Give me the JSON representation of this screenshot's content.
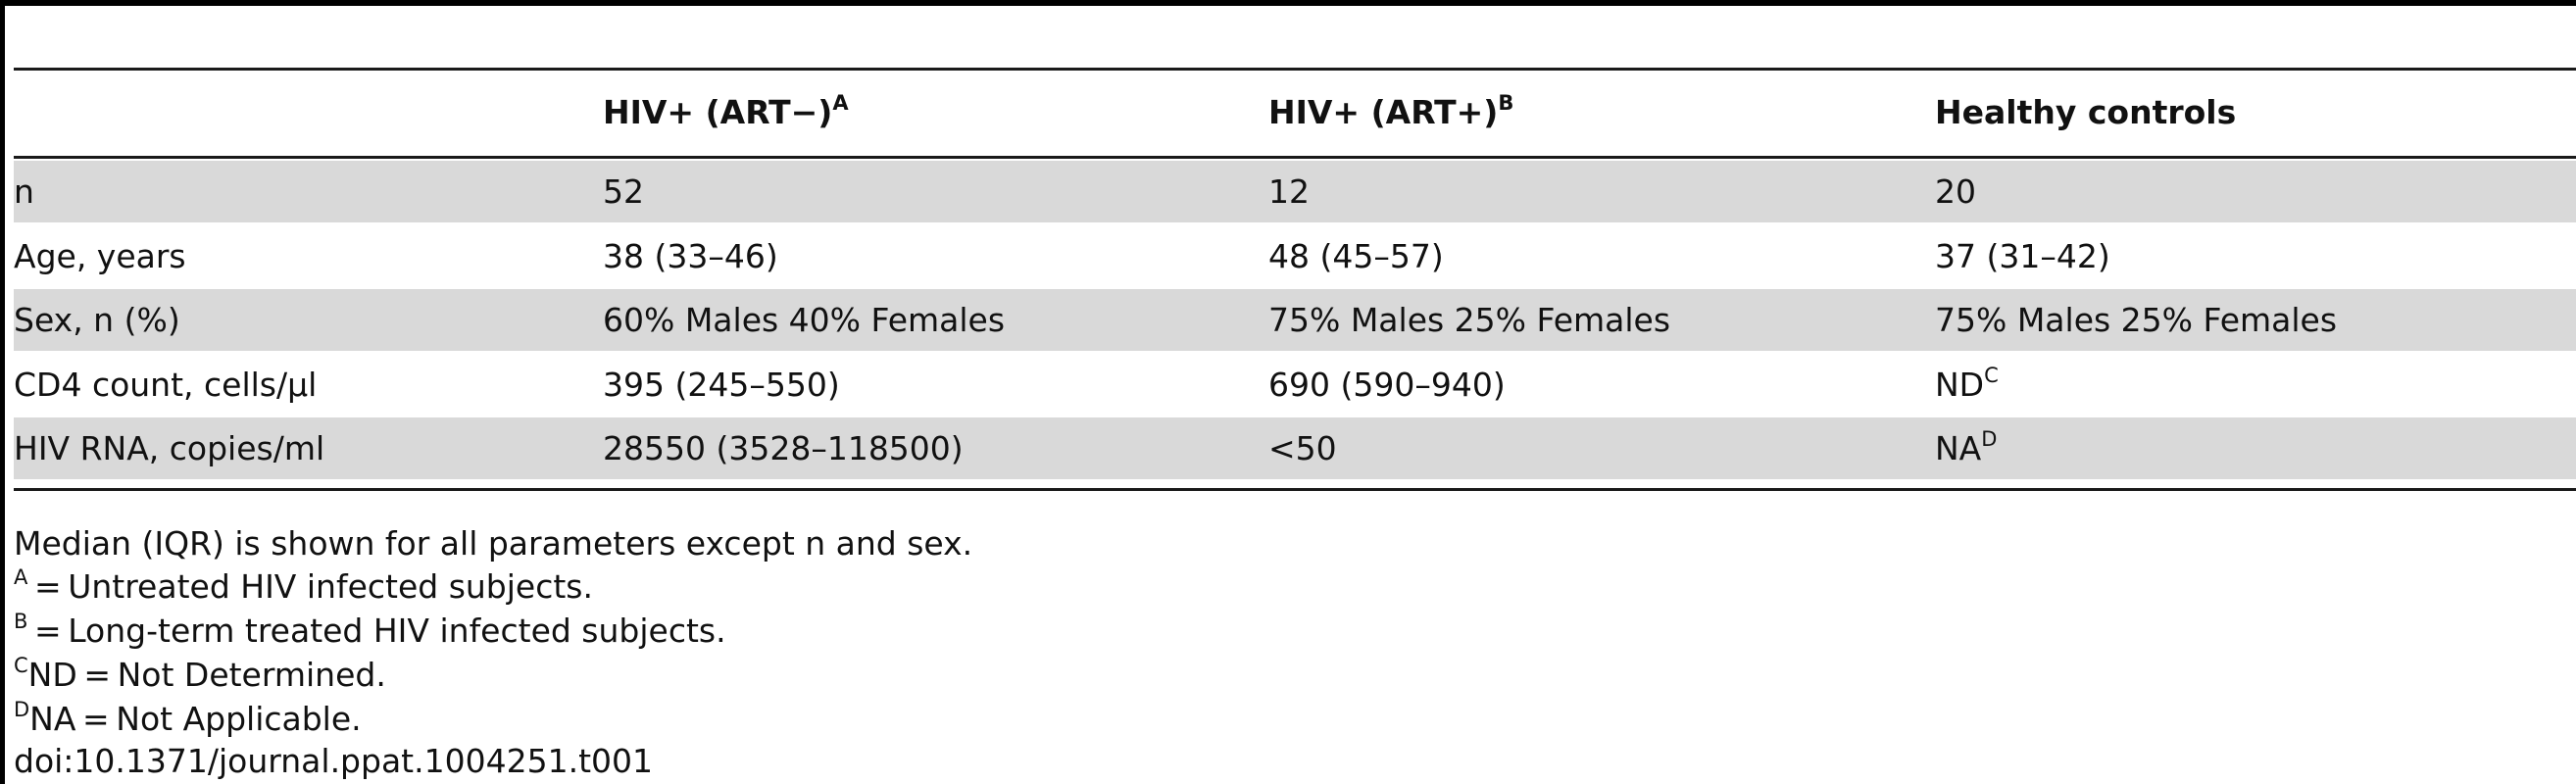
{
  "table": {
    "columns": [
      {
        "label": "",
        "sup": ""
      },
      {
        "label": "HIV+ (ART−)",
        "sup": "A"
      },
      {
        "label": "HIV+ (ART+)",
        "sup": "B"
      },
      {
        "label": "Healthy controls",
        "sup": ""
      }
    ],
    "rows": [
      {
        "label": "n",
        "art_neg": "52",
        "art_pos": "12",
        "controls": "20",
        "controls_sup": ""
      },
      {
        "label": "Age, years",
        "art_neg": "38 (33–46)",
        "art_pos": "48 (45–57)",
        "controls": "37 (31–42)",
        "controls_sup": ""
      },
      {
        "label": "Sex, n (%)",
        "art_neg": "60% Males 40% Females",
        "art_pos": "75% Males 25% Females",
        "controls": "75% Males 25% Females",
        "controls_sup": ""
      },
      {
        "label": "CD4 count, cells/µl",
        "art_neg": "395 (245–550)",
        "art_pos": "690 (590–940)",
        "controls": "ND",
        "controls_sup": "C"
      },
      {
        "label": "HIV RNA, copies/ml",
        "art_neg": "28550 (3528–118500)",
        "art_pos": "<50",
        "controls": "NA",
        "controls_sup": "D"
      }
    ]
  },
  "footnotes": {
    "median": "Median (IQR) is shown for all parameters except n and sex.",
    "a_mark": "A",
    "a_text": " = Untreated HIV infected subjects.",
    "b_mark": "B",
    "b_text": " = Long-term treated HIV infected subjects.",
    "c_mark": "C",
    "c_text": "ND = Not Determined.",
    "d_mark": "D",
    "d_text": "NA = Not Applicable.",
    "doi": "doi:10.1371/journal.ppat.1004251.t001"
  }
}
